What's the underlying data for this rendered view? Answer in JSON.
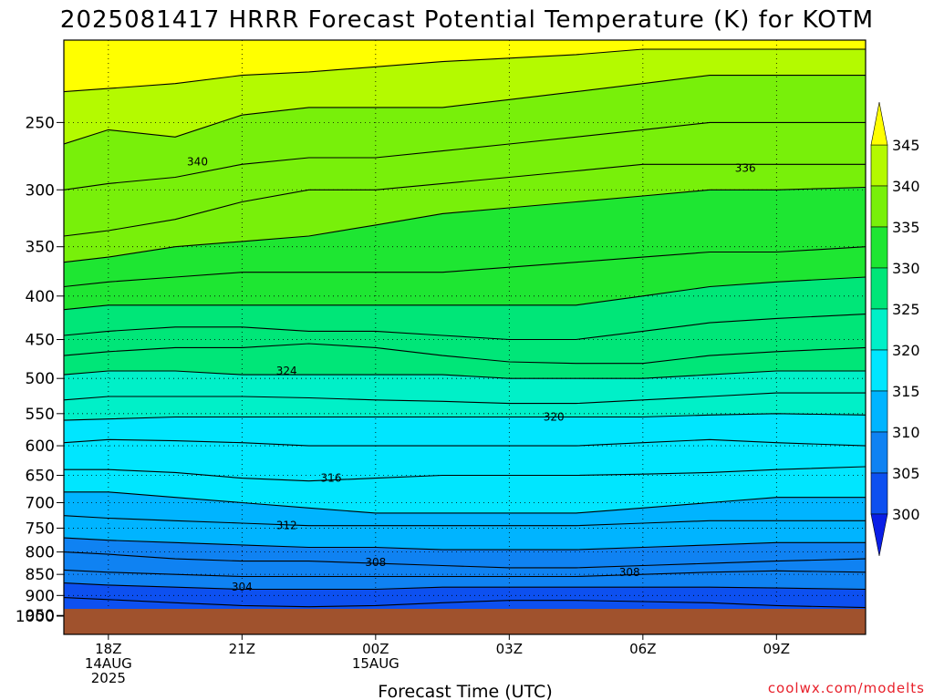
{
  "chart_data": {
    "type": "heatmap",
    "title": "2025081417 HRRR Forecast Potential Temperature (K) for KOTM",
    "xlabel": "Forecast Time (UTC)",
    "credit": "coolwx.com/modelts",
    "y_axis": {
      "scale": "log-pressure",
      "reversed": true,
      "range_hpa": [
        1000,
        200
      ],
      "ticks": [
        250,
        300,
        350,
        400,
        450,
        500,
        550,
        600,
        650,
        700,
        750,
        800,
        850,
        900,
        950,
        1000
      ]
    },
    "x_axis": {
      "range_hours": [
        -1,
        17
      ],
      "ticks": [
        {
          "hour": 0,
          "lines": [
            "18Z",
            "14AUG",
            "2025"
          ]
        },
        {
          "hour": 3,
          "lines": [
            "21Z"
          ]
        },
        {
          "hour": 6,
          "lines": [
            "00Z",
            "15AUG"
          ]
        },
        {
          "hour": 9,
          "lines": [
            "03Z"
          ]
        },
        {
          "hour": 12,
          "lines": [
            "06Z"
          ]
        },
        {
          "hour": 15,
          "lines": [
            "09Z"
          ]
        }
      ],
      "grid": true
    },
    "colorbar": {
      "labels": [
        345,
        340,
        335,
        330,
        325,
        320,
        315,
        310,
        305,
        300
      ],
      "levels": [
        300,
        305,
        310,
        315,
        320,
        325,
        330,
        335,
        340,
        345
      ],
      "colors": [
        "#0a1ee6",
        "#0d50f0",
        "#0f82f2",
        "#00b4ff",
        "#00e6ff",
        "#00f0c8",
        "#00e678",
        "#1ee632",
        "#78f00a",
        "#b4fa00",
        "#ffff00"
      ],
      "extend": "both",
      "placement": "right"
    },
    "ground_color": "#a0522d",
    "x_hours": [
      -1,
      0,
      1.5,
      3,
      4.5,
      6,
      7.5,
      9,
      10.5,
      12,
      13.5,
      15,
      17
    ],
    "contours": [
      {
        "value": 301,
        "p": [
          970,
          970,
          970,
          970,
          970,
          970,
          970,
          970,
          970,
          968,
          967,
          966,
          965
        ]
      },
      {
        "value": 302,
        "p": [
          940,
          942,
          946,
          950,
          958,
          962,
          955,
          950,
          952,
          955,
          955,
          957,
          958
        ]
      },
      {
        "value": 303,
        "p": [
          905,
          910,
          918,
          925,
          928,
          925,
          918,
          912,
          912,
          915,
          918,
          925,
          930
        ]
      },
      {
        "value": 304,
        "p": [
          870,
          875,
          880,
          885,
          885,
          885,
          880,
          880,
          880,
          880,
          880,
          882,
          885
        ]
      },
      {
        "value": 306,
        "p": [
          840,
          845,
          850,
          855,
          855,
          855,
          855,
          855,
          855,
          850,
          845,
          842,
          845
        ]
      },
      {
        "value": 308,
        "p": [
          800,
          805,
          815,
          820,
          820,
          825,
          830,
          835,
          835,
          830,
          825,
          820,
          815
        ]
      },
      {
        "value": 310,
        "p": [
          770,
          775,
          780,
          785,
          790,
          790,
          795,
          795,
          795,
          790,
          785,
          780,
          780
        ]
      },
      {
        "value": 312,
        "p": [
          725,
          730,
          735,
          740,
          745,
          745,
          745,
          745,
          745,
          740,
          735,
          735,
          735
        ]
      },
      {
        "value": 314,
        "p": [
          680,
          680,
          690,
          700,
          710,
          720,
          720,
          720,
          720,
          710,
          700,
          690,
          690
        ]
      },
      {
        "value": 316,
        "p": [
          640,
          640,
          645,
          655,
          660,
          655,
          650,
          650,
          650,
          648,
          645,
          640,
          635
        ]
      },
      {
        "value": 318,
        "p": [
          595,
          590,
          592,
          595,
          600,
          600,
          600,
          600,
          600,
          595,
          590,
          595,
          600
        ]
      },
      {
        "value": 320,
        "p": [
          560,
          558,
          555,
          555,
          555,
          555,
          555,
          555,
          555,
          555,
          552,
          550,
          552
        ]
      },
      {
        "value": 322,
        "p": [
          530,
          525,
          525,
          525,
          527,
          530,
          532,
          535,
          535,
          530,
          525,
          520,
          520
        ]
      },
      {
        "value": 324,
        "p": [
          495,
          490,
          490,
          495,
          495,
          495,
          495,
          500,
          500,
          500,
          495,
          490,
          490
        ]
      },
      {
        "value": 326,
        "p": [
          470,
          465,
          460,
          460,
          455,
          460,
          470,
          478,
          480,
          480,
          470,
          465,
          460
        ]
      },
      {
        "value": 328,
        "p": [
          445,
          440,
          435,
          435,
          440,
          440,
          445,
          450,
          450,
          440,
          430,
          425,
          420
        ]
      },
      {
        "value": 330,
        "p": [
          415,
          410,
          410,
          410,
          410,
          410,
          410,
          410,
          410,
          400,
          390,
          385,
          380
        ]
      },
      {
        "value": 332,
        "p": [
          390,
          385,
          380,
          375,
          375,
          375,
          375,
          370,
          365,
          360,
          355,
          355,
          350
        ]
      },
      {
        "value": 334,
        "p": [
          365,
          360,
          350,
          345,
          340,
          330,
          320,
          315,
          310,
          305,
          300,
          300,
          298
        ]
      },
      {
        "value": 336,
        "p": [
          340,
          335,
          325,
          310,
          300,
          300,
          295,
          290,
          285,
          280,
          280,
          280,
          280
        ]
      },
      {
        "value": 338,
        "p": [
          300,
          295,
          290,
          280,
          275,
          275,
          270,
          265,
          260,
          255,
          250,
          250,
          250
        ]
      },
      {
        "value": 340,
        "p": [
          265,
          255,
          260,
          245,
          240,
          240,
          240,
          235,
          230,
          225,
          220,
          220,
          220
        ]
      },
      {
        "value": 342,
        "p": [
          230,
          228,
          225,
          220,
          218,
          215,
          212,
          210,
          208,
          205,
          205,
          205,
          205
        ]
      }
    ],
    "contour_labels": [
      {
        "text": "340",
        "hour": 2,
        "hpa": 278
      },
      {
        "text": "336",
        "hour": 14.3,
        "hpa": 283
      },
      {
        "text": "324",
        "hour": 4,
        "hpa": 490
      },
      {
        "text": "320",
        "hour": 10,
        "hpa": 555
      },
      {
        "text": "316",
        "hour": 5,
        "hpa": 655
      },
      {
        "text": "312",
        "hour": 4,
        "hpa": 745
      },
      {
        "text": "308",
        "hour": 6,
        "hpa": 823
      },
      {
        "text": "308",
        "hour": 11.7,
        "hpa": 845
      },
      {
        "text": "304",
        "hour": 3,
        "hpa": 880
      }
    ]
  }
}
